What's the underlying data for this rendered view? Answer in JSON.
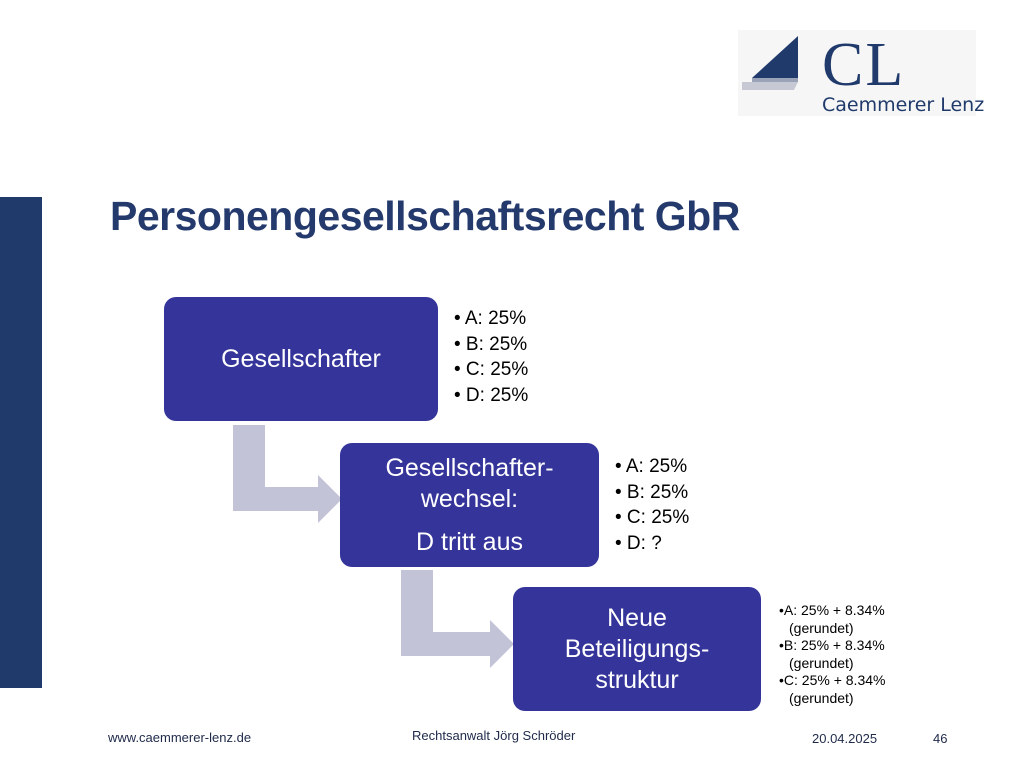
{
  "logo": {
    "mark": "CL",
    "name": "Caemmerer Lenz"
  },
  "slide": {
    "title": "Personengesellschaftsrecht GbR"
  },
  "boxes": {
    "box1": {
      "line1": "Gesellschafter"
    },
    "box2": {
      "line1": "Gesellschafter-",
      "line2": "wechsel:",
      "line3": "D tritt aus"
    },
    "box3": {
      "line1": "Neue",
      "line2": "Beteiligungs-",
      "line3": "struktur"
    }
  },
  "lists": {
    "list1": [
      "• A: 25%",
      "• B: 25%",
      "• C: 25%",
      "• D: 25%"
    ],
    "list2": [
      "• A: 25%",
      "• B: 25%",
      "• C: 25%",
      "• D: ?"
    ],
    "list3": [
      {
        "main": "•A: 25% + 8.34%",
        "sub": "(gerundet)"
      },
      {
        "main": "•B: 25% + 8.34%",
        "sub": "(gerundet)"
      },
      {
        "main": "•C: 25% + 8.34%",
        "sub": "(gerundet)"
      }
    ]
  },
  "footer": {
    "website": "www.caemmerer-lenz.de",
    "author": "Rechtsanwalt Jörg Schröder",
    "date": "20.04.2025",
    "page": "46"
  },
  "colors": {
    "accent": "#1f3a6b",
    "box": "#34349a",
    "arrow": "#c3c3d8"
  }
}
